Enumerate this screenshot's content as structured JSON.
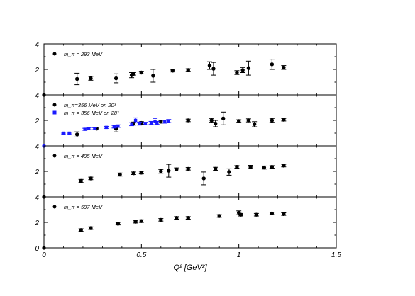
{
  "chart_data": {
    "type": "scatter",
    "xlabel": "Q² [GeV²]",
    "x_ticks": [
      "0",
      "0.5",
      "1",
      "1.5"
    ],
    "xlim": [
      0,
      1.5
    ],
    "y_ticks": [
      "0",
      "2",
      "4"
    ],
    "panels": [
      {
        "ylim": [
          0,
          4
        ],
        "legend": [
          {
            "text": "m_π = 293 MeV",
            "marker": "circle",
            "color": "#000000"
          }
        ],
        "series": [
          {
            "color": "#000000",
            "marker": "circle",
            "points": [
              {
                "x": 0.17,
                "y": 1.25,
                "err": 0.45
              },
              {
                "x": 0.24,
                "y": 1.3,
                "err": 0.15
              },
              {
                "x": 0.37,
                "y": 1.3,
                "err": 0.35
              },
              {
                "x": 0.45,
                "y": 1.55,
                "err": 0.2
              },
              {
                "x": 0.46,
                "y": 1.65,
                "err": 0.1
              },
              {
                "x": 0.5,
                "y": 1.75,
                "err": 0.1
              },
              {
                "x": 0.56,
                "y": 1.5,
                "err": 0.5
              },
              {
                "x": 0.66,
                "y": 1.9,
                "err": 0.1
              },
              {
                "x": 0.74,
                "y": 1.95,
                "err": 0.1
              },
              {
                "x": 0.85,
                "y": 2.3,
                "err": 0.3
              },
              {
                "x": 0.87,
                "y": 2.05,
                "err": 0.5
              },
              {
                "x": 0.99,
                "y": 1.75,
                "err": 0.15
              },
              {
                "x": 1.02,
                "y": 1.95,
                "err": 0.2
              },
              {
                "x": 1.05,
                "y": 2.1,
                "err": 0.55
              },
              {
                "x": 1.17,
                "y": 2.4,
                "err": 0.4
              },
              {
                "x": 1.23,
                "y": 2.15,
                "err": 0.15
              }
            ]
          }
        ]
      },
      {
        "ylim": [
          0,
          4
        ],
        "legend": [
          {
            "text": "m_π=356 MeV on 20³",
            "marker": "circle",
            "color": "#000000"
          },
          {
            "text": "m_π = 356 MeV on 28³",
            "marker": "square",
            "color": "#1a1aff"
          }
        ],
        "series": [
          {
            "color": "#000000",
            "marker": "circle",
            "points": [
              {
                "x": 0.17,
                "y": 0.9,
                "err": 0.2
              },
              {
                "x": 0.27,
                "y": 1.35,
                "err": 0.1
              },
              {
                "x": 0.37,
                "y": 1.35,
                "err": 0.25
              },
              {
                "x": 0.46,
                "y": 1.75,
                "err": 0.12
              },
              {
                "x": 0.5,
                "y": 1.8,
                "err": 0.1
              },
              {
                "x": 0.6,
                "y": 1.9,
                "err": 0.1
              },
              {
                "x": 0.74,
                "y": 2.0,
                "err": 0.1
              },
              {
                "x": 0.86,
                "y": 2.0,
                "err": 0.15
              },
              {
                "x": 0.88,
                "y": 1.75,
                "err": 0.25
              },
              {
                "x": 0.92,
                "y": 2.15,
                "err": 0.5
              },
              {
                "x": 1.0,
                "y": 1.95,
                "err": 0.1
              },
              {
                "x": 1.05,
                "y": 2.0,
                "err": 0.12
              },
              {
                "x": 1.08,
                "y": 1.7,
                "err": 0.2
              },
              {
                "x": 1.17,
                "y": 2.0,
                "err": 0.15
              },
              {
                "x": 1.23,
                "y": 2.05,
                "err": 0.1
              }
            ]
          },
          {
            "color": "#1a1aff",
            "marker": "square",
            "points": [
              {
                "x": 0.1,
                "y": 1.0,
                "err": 0.06
              },
              {
                "x": 0.13,
                "y": 1.0,
                "err": 0.06
              },
              {
                "x": 0.21,
                "y": 1.3,
                "err": 0.08
              },
              {
                "x": 0.23,
                "y": 1.35,
                "err": 0.08
              },
              {
                "x": 0.26,
                "y": 1.35,
                "err": 0.08
              },
              {
                "x": 0.32,
                "y": 1.45,
                "err": 0.08
              },
              {
                "x": 0.36,
                "y": 1.5,
                "err": 0.1
              },
              {
                "x": 0.38,
                "y": 1.55,
                "err": 0.1
              },
              {
                "x": 0.45,
                "y": 1.7,
                "err": 0.12
              },
              {
                "x": 0.47,
                "y": 2.0,
                "err": 0.2
              },
              {
                "x": 0.49,
                "y": 1.75,
                "err": 0.12
              },
              {
                "x": 0.52,
                "y": 1.75,
                "err": 0.1
              },
              {
                "x": 0.55,
                "y": 1.8,
                "err": 0.12
              },
              {
                "x": 0.57,
                "y": 1.9,
                "err": 0.25
              },
              {
                "x": 0.58,
                "y": 1.8,
                "err": 0.12
              },
              {
                "x": 0.62,
                "y": 1.9,
                "err": 0.12
              },
              {
                "x": 0.64,
                "y": 1.95,
                "err": 0.12
              }
            ]
          }
        ]
      },
      {
        "ylim": [
          0,
          4
        ],
        "legend": [
          {
            "text": "m_π = 495 MeV",
            "marker": "circle",
            "color": "#000000"
          }
        ],
        "series": [
          {
            "color": "#000000",
            "marker": "circle",
            "points": [
              {
                "x": 0.19,
                "y": 1.25,
                "err": 0.12
              },
              {
                "x": 0.24,
                "y": 1.45,
                "err": 0.1
              },
              {
                "x": 0.39,
                "y": 1.75,
                "err": 0.12
              },
              {
                "x": 0.46,
                "y": 1.85,
                "err": 0.1
              },
              {
                "x": 0.5,
                "y": 1.9,
                "err": 0.1
              },
              {
                "x": 0.6,
                "y": 2.0,
                "err": 0.15
              },
              {
                "x": 0.64,
                "y": 2.05,
                "err": 0.5
              },
              {
                "x": 0.68,
                "y": 2.15,
                "err": 0.12
              },
              {
                "x": 0.74,
                "y": 2.2,
                "err": 0.1
              },
              {
                "x": 0.82,
                "y": 1.45,
                "err": 0.5
              },
              {
                "x": 0.88,
                "y": 2.2,
                "err": 0.12
              },
              {
                "x": 0.95,
                "y": 1.95,
                "err": 0.25
              },
              {
                "x": 0.99,
                "y": 2.35,
                "err": 0.1
              },
              {
                "x": 1.06,
                "y": 2.35,
                "err": 0.12
              },
              {
                "x": 1.13,
                "y": 2.3,
                "err": 0.12
              },
              {
                "x": 1.17,
                "y": 2.35,
                "err": 0.1
              },
              {
                "x": 1.23,
                "y": 2.45,
                "err": 0.1
              }
            ]
          }
        ]
      },
      {
        "ylim": [
          0,
          4
        ],
        "legend": [
          {
            "text": "m_π = 597 MeV",
            "marker": "circle",
            "color": "#000000"
          }
        ],
        "series": [
          {
            "color": "#000000",
            "marker": "circle",
            "points": [
              {
                "x": 0.19,
                "y": 1.4,
                "err": 0.1
              },
              {
                "x": 0.24,
                "y": 1.55,
                "err": 0.1
              },
              {
                "x": 0.38,
                "y": 1.9,
                "err": 0.1
              },
              {
                "x": 0.47,
                "y": 2.05,
                "err": 0.1
              },
              {
                "x": 0.5,
                "y": 2.1,
                "err": 0.1
              },
              {
                "x": 0.6,
                "y": 2.2,
                "err": 0.1
              },
              {
                "x": 0.68,
                "y": 2.35,
                "err": 0.1
              },
              {
                "x": 0.74,
                "y": 2.35,
                "err": 0.1
              },
              {
                "x": 0.9,
                "y": 2.5,
                "err": 0.1
              },
              {
                "x": 1.0,
                "y": 2.75,
                "err": 0.15
              },
              {
                "x": 1.01,
                "y": 2.6,
                "err": 0.1
              },
              {
                "x": 1.09,
                "y": 2.6,
                "err": 0.1
              },
              {
                "x": 1.17,
                "y": 2.7,
                "err": 0.1
              },
              {
                "x": 1.23,
                "y": 2.65,
                "err": 0.1
              }
            ]
          }
        ]
      }
    ]
  }
}
